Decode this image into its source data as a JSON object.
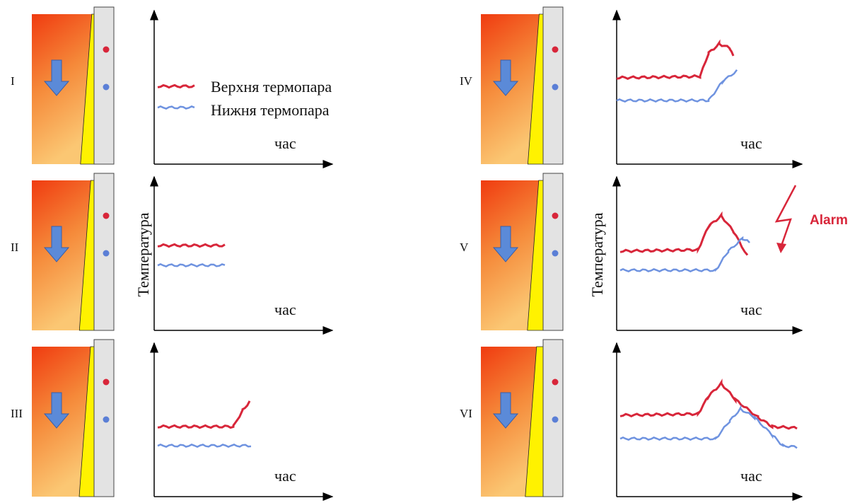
{
  "panels": [
    {
      "label": "I",
      "x_label": "час"
    },
    {
      "label": "II",
      "x_label": "час"
    },
    {
      "label": "III",
      "x_label": "час"
    },
    {
      "label": "IV",
      "x_label": "час"
    },
    {
      "label": "V",
      "x_label": "час"
    },
    {
      "label": "VI",
      "x_label": "час"
    }
  ],
  "legend": {
    "upper": "Верхня термопара",
    "lower": "Нижня термопара"
  },
  "y_labels": [
    "Температура",
    "Температура"
  ],
  "alarm": "Alarm"
}
